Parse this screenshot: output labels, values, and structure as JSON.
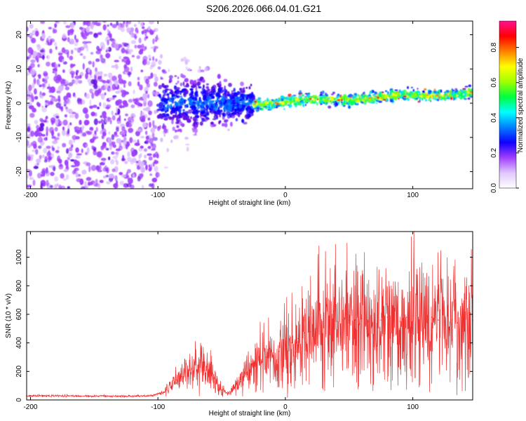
{
  "title": "S206.2026.066.04.01.G21",
  "colors": {
    "snr_line": "#f03030",
    "colormap": [
      "#ffffff",
      "#d9b8ff",
      "#a040ff",
      "#6010e0",
      "#1000ff",
      "#0070ff",
      "#00e0ff",
      "#00ff60",
      "#80ff00",
      "#ffff00",
      "#ff8000",
      "#ff0000",
      "#ff1090"
    ]
  },
  "chart_data": [
    {
      "type": "heatmap",
      "xlabel": "Height of straight line (km)",
      "ylabel": "Frequency (Hz)",
      "xlim": [
        -203,
        147
      ],
      "ylim": [
        -25,
        24
      ],
      "xticks": [
        -200,
        -100,
        0,
        100
      ],
      "yticks": [
        -20,
        -10,
        0,
        10,
        20
      ],
      "xtick_labels": [
        "-200",
        "-100",
        "0",
        "100"
      ],
      "ytick_labels": [
        "-20",
        "-10",
        "0",
        "10",
        "20"
      ],
      "colorbar": {
        "label": "Normalized spectral amplitude",
        "range": [
          0,
          0.95
        ],
        "ticks": [
          0.0,
          0.2,
          0.4,
          0.6,
          0.8
        ],
        "tick_labels": [
          "0.0",
          "0.2",
          "0.4",
          "0.6",
          "0.8"
        ]
      },
      "features": {
        "noise_region_km": [
          -203,
          -100
        ],
        "dispersive_region_km": [
          -100,
          -25
        ],
        "signal_track_km": [
          -25,
          147
        ],
        "signal_track_frequency_hz": [
          0,
          3
        ]
      }
    },
    {
      "type": "line",
      "xlabel": "Height of straight line (km)",
      "ylabel": "SNR (10 * v/v)",
      "xlim": [
        -203,
        147
      ],
      "ylim": [
        0,
        1180
      ],
      "xticks": [
        -200,
        -100,
        0,
        100
      ],
      "yticks": [
        0,
        200,
        400,
        600,
        800,
        1000
      ],
      "xtick_labels": [
        "-200",
        "-100",
        "0",
        "100"
      ],
      "ytick_labels": [
        "0",
        "200",
        "400",
        "600",
        "800",
        "1000"
      ],
      "series": [
        {
          "name": "SNR",
          "x": [
            -203,
            -190,
            -170,
            -150,
            -130,
            -115,
            -105,
            -95,
            -85,
            -75,
            -68,
            -62,
            -56,
            -50,
            -45,
            -40,
            -35,
            -30,
            -25,
            -20,
            -15,
            -10,
            -5,
            0,
            5,
            10,
            15,
            20,
            25,
            30,
            35,
            40,
            45,
            50,
            55,
            60,
            65,
            70,
            75,
            80,
            85,
            90,
            95,
            100,
            105,
            110,
            115,
            120,
            125,
            130,
            135,
            140,
            147
          ],
          "y": [
            28,
            30,
            28,
            27,
            26,
            27,
            30,
            55,
            140,
            210,
            240,
            230,
            150,
            70,
            45,
            80,
            130,
            190,
            240,
            290,
            300,
            330,
            340,
            380,
            400,
            430,
            470,
            480,
            500,
            520,
            540,
            550,
            560,
            540,
            560,
            570,
            550,
            530,
            560,
            580,
            560,
            550,
            580,
            590,
            560,
            570,
            580,
            560,
            550,
            560,
            540,
            550,
            560
          ]
        }
      ]
    }
  ]
}
